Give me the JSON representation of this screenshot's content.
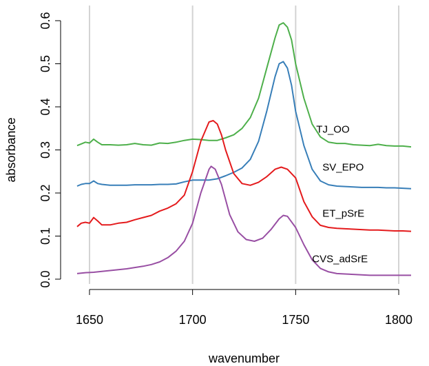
{
  "chart_data": {
    "type": "line",
    "xlabel": "wavenumber",
    "ylabel": "absorbance",
    "xlim": [
      1644,
      1806
    ],
    "ylim": [
      0,
      0.6
    ],
    "x_ticks": [
      1650,
      1700,
      1750,
      1800
    ],
    "y_ticks": [
      0.0,
      0.1,
      0.2,
      0.3,
      0.4,
      0.5,
      0.6
    ],
    "x_tick_labels": [
      "1650",
      "1700",
      "1750",
      "1800"
    ],
    "y_tick_labels": [
      "0.0",
      "0.1",
      "0.2",
      "0.3",
      "0.4",
      "0.5",
      "0.6"
    ],
    "grid": "vertical",
    "series": [
      {
        "name": "TJ_OO",
        "color": "#4daf4a",
        "label_at": [
          1760,
          0.34
        ],
        "points": [
          [
            1644,
            0.31
          ],
          [
            1646,
            0.314
          ],
          [
            1648,
            0.318
          ],
          [
            1650,
            0.316
          ],
          [
            1652,
            0.325
          ],
          [
            1654,
            0.318
          ],
          [
            1656,
            0.312
          ],
          [
            1660,
            0.312
          ],
          [
            1664,
            0.311
          ],
          [
            1668,
            0.312
          ],
          [
            1672,
            0.315
          ],
          [
            1676,
            0.312
          ],
          [
            1680,
            0.311
          ],
          [
            1684,
            0.316
          ],
          [
            1688,
            0.315
          ],
          [
            1692,
            0.318
          ],
          [
            1696,
            0.322
          ],
          [
            1700,
            0.325
          ],
          [
            1704,
            0.324
          ],
          [
            1708,
            0.322
          ],
          [
            1712,
            0.322
          ],
          [
            1716,
            0.328
          ],
          [
            1720,
            0.335
          ],
          [
            1724,
            0.35
          ],
          [
            1728,
            0.375
          ],
          [
            1732,
            0.42
          ],
          [
            1736,
            0.49
          ],
          [
            1740,
            0.56
          ],
          [
            1742,
            0.59
          ],
          [
            1744,
            0.595
          ],
          [
            1746,
            0.585
          ],
          [
            1748,
            0.555
          ],
          [
            1750,
            0.5
          ],
          [
            1754,
            0.42
          ],
          [
            1758,
            0.36
          ],
          [
            1762,
            0.33
          ],
          [
            1766,
            0.318
          ],
          [
            1770,
            0.315
          ],
          [
            1774,
            0.315
          ],
          [
            1778,
            0.312
          ],
          [
            1782,
            0.311
          ],
          [
            1786,
            0.31
          ],
          [
            1790,
            0.313
          ],
          [
            1794,
            0.31
          ],
          [
            1798,
            0.309
          ],
          [
            1802,
            0.309
          ],
          [
            1806,
            0.307
          ]
        ]
      },
      {
        "name": "SV_EPO",
        "color": "#377eb8",
        "label_at": [
          1763,
          0.252
        ],
        "points": [
          [
            1644,
            0.216
          ],
          [
            1646,
            0.22
          ],
          [
            1648,
            0.222
          ],
          [
            1650,
            0.222
          ],
          [
            1652,
            0.228
          ],
          [
            1654,
            0.222
          ],
          [
            1656,
            0.22
          ],
          [
            1660,
            0.218
          ],
          [
            1664,
            0.218
          ],
          [
            1668,
            0.218
          ],
          [
            1672,
            0.219
          ],
          [
            1676,
            0.219
          ],
          [
            1680,
            0.219
          ],
          [
            1684,
            0.22
          ],
          [
            1688,
            0.22
          ],
          [
            1692,
            0.221
          ],
          [
            1696,
            0.226
          ],
          [
            1700,
            0.23
          ],
          [
            1704,
            0.23
          ],
          [
            1708,
            0.23
          ],
          [
            1712,
            0.233
          ],
          [
            1716,
            0.24
          ],
          [
            1720,
            0.248
          ],
          [
            1724,
            0.258
          ],
          [
            1728,
            0.278
          ],
          [
            1732,
            0.32
          ],
          [
            1736,
            0.39
          ],
          [
            1740,
            0.47
          ],
          [
            1742,
            0.5
          ],
          [
            1744,
            0.505
          ],
          [
            1746,
            0.49
          ],
          [
            1748,
            0.45
          ],
          [
            1750,
            0.39
          ],
          [
            1754,
            0.31
          ],
          [
            1758,
            0.255
          ],
          [
            1762,
            0.228
          ],
          [
            1766,
            0.219
          ],
          [
            1770,
            0.216
          ],
          [
            1774,
            0.215
          ],
          [
            1778,
            0.214
          ],
          [
            1782,
            0.213
          ],
          [
            1786,
            0.213
          ],
          [
            1790,
            0.213
          ],
          [
            1794,
            0.212
          ],
          [
            1798,
            0.212
          ],
          [
            1802,
            0.211
          ],
          [
            1806,
            0.21
          ]
        ]
      },
      {
        "name": "ET_pSrE",
        "color": "#e41a1c",
        "label_at": [
          1763,
          0.145
        ],
        "points": [
          [
            1644,
            0.122
          ],
          [
            1646,
            0.13
          ],
          [
            1648,
            0.132
          ],
          [
            1650,
            0.13
          ],
          [
            1652,
            0.143
          ],
          [
            1654,
            0.135
          ],
          [
            1656,
            0.126
          ],
          [
            1660,
            0.126
          ],
          [
            1664,
            0.13
          ],
          [
            1668,
            0.132
          ],
          [
            1672,
            0.138
          ],
          [
            1676,
            0.143
          ],
          [
            1680,
            0.148
          ],
          [
            1684,
            0.158
          ],
          [
            1688,
            0.165
          ],
          [
            1692,
            0.175
          ],
          [
            1696,
            0.195
          ],
          [
            1700,
            0.25
          ],
          [
            1704,
            0.32
          ],
          [
            1708,
            0.365
          ],
          [
            1710,
            0.368
          ],
          [
            1712,
            0.36
          ],
          [
            1714,
            0.335
          ],
          [
            1716,
            0.3
          ],
          [
            1720,
            0.245
          ],
          [
            1724,
            0.222
          ],
          [
            1728,
            0.218
          ],
          [
            1732,
            0.225
          ],
          [
            1736,
            0.238
          ],
          [
            1740,
            0.255
          ],
          [
            1743,
            0.26
          ],
          [
            1746,
            0.255
          ],
          [
            1750,
            0.235
          ],
          [
            1754,
            0.18
          ],
          [
            1758,
            0.145
          ],
          [
            1762,
            0.125
          ],
          [
            1766,
            0.12
          ],
          [
            1770,
            0.118
          ],
          [
            1774,
            0.117
          ],
          [
            1778,
            0.116
          ],
          [
            1782,
            0.115
          ],
          [
            1786,
            0.114
          ],
          [
            1790,
            0.114
          ],
          [
            1794,
            0.113
          ],
          [
            1798,
            0.112
          ],
          [
            1802,
            0.112
          ],
          [
            1806,
            0.111
          ]
        ]
      },
      {
        "name": "CVS_adSrE",
        "color": "#984ea3",
        "label_at": [
          1758,
          0.039
        ],
        "points": [
          [
            1644,
            0.013
          ],
          [
            1648,
            0.015
          ],
          [
            1652,
            0.016
          ],
          [
            1656,
            0.018
          ],
          [
            1660,
            0.02
          ],
          [
            1664,
            0.022
          ],
          [
            1668,
            0.024
          ],
          [
            1672,
            0.027
          ],
          [
            1676,
            0.03
          ],
          [
            1680,
            0.034
          ],
          [
            1684,
            0.04
          ],
          [
            1688,
            0.05
          ],
          [
            1692,
            0.065
          ],
          [
            1696,
            0.088
          ],
          [
            1700,
            0.13
          ],
          [
            1704,
            0.2
          ],
          [
            1708,
            0.255
          ],
          [
            1709,
            0.262
          ],
          [
            1711,
            0.255
          ],
          [
            1714,
            0.22
          ],
          [
            1718,
            0.15
          ],
          [
            1722,
            0.11
          ],
          [
            1726,
            0.092
          ],
          [
            1730,
            0.088
          ],
          [
            1734,
            0.095
          ],
          [
            1738,
            0.115
          ],
          [
            1742,
            0.14
          ],
          [
            1744,
            0.148
          ],
          [
            1746,
            0.146
          ],
          [
            1750,
            0.12
          ],
          [
            1754,
            0.08
          ],
          [
            1758,
            0.045
          ],
          [
            1762,
            0.025
          ],
          [
            1766,
            0.017
          ],
          [
            1770,
            0.013
          ],
          [
            1774,
            0.012
          ],
          [
            1778,
            0.011
          ],
          [
            1782,
            0.01
          ],
          [
            1786,
            0.009
          ],
          [
            1790,
            0.009
          ],
          [
            1794,
            0.009
          ],
          [
            1798,
            0.009
          ],
          [
            1802,
            0.009
          ],
          [
            1806,
            0.009
          ]
        ]
      }
    ]
  }
}
